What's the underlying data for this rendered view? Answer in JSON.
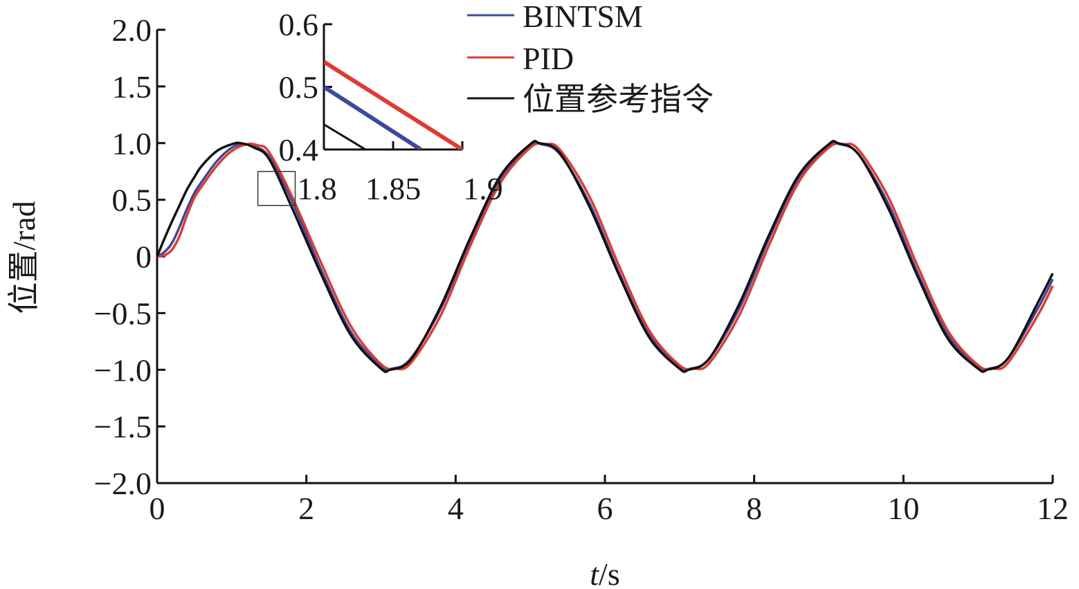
{
  "chart_data": {
    "type": "line",
    "xlabel_var": "t",
    "xlabel_unit": "/s",
    "ylabel": "位置/rad",
    "xlim": [
      0,
      12
    ],
    "ylim": [
      -2.0,
      2.0
    ],
    "xticks": [
      0,
      2,
      4,
      6,
      8,
      10,
      12
    ],
    "xtick_labels": [
      "0",
      "2",
      "4",
      "6",
      "8",
      "10",
      "12"
    ],
    "yticks": [
      2.0,
      1.5,
      1.0,
      0.5,
      0,
      -0.5,
      -1.0,
      -1.5,
      -2.0
    ],
    "ytick_labels": [
      "2.0",
      "1.5",
      "1.0",
      "0.5",
      "0",
      "−0.5",
      "−1.0",
      "−1.5",
      "−2.0"
    ],
    "grid": false,
    "legend_position": "top-center",
    "series": [
      {
        "name": "BINTSM",
        "color": "#3b4a9a",
        "x": [
          0,
          0.1,
          0.2,
          0.3,
          0.4,
          0.5,
          0.6,
          0.8,
          1.0,
          1.15,
          1.3,
          1.5,
          1.8,
          2.2,
          2.6,
          3.0,
          3.15,
          3.4,
          3.8,
          4.2,
          4.6,
          5.0,
          5.15,
          5.4,
          5.8,
          6.2,
          6.6,
          7.0,
          7.15,
          7.4,
          7.8,
          8.2,
          8.6,
          9.0,
          9.15,
          9.4,
          9.8,
          10.2,
          10.6,
          11.0,
          11.15,
          11.4,
          11.8,
          12.0
        ],
        "y": [
          0.0,
          0.04,
          0.12,
          0.26,
          0.42,
          0.56,
          0.66,
          0.84,
          0.96,
          0.99,
          0.97,
          0.88,
          0.5,
          -0.12,
          -0.67,
          -0.97,
          -0.99,
          -0.9,
          -0.46,
          0.15,
          0.69,
          0.97,
          0.99,
          0.9,
          0.46,
          -0.16,
          -0.7,
          -0.97,
          -0.99,
          -0.9,
          -0.46,
          0.16,
          0.7,
          0.97,
          0.99,
          0.9,
          0.46,
          -0.16,
          -0.7,
          -0.97,
          -0.99,
          -0.9,
          -0.46,
          -0.2
        ]
      },
      {
        "name": "PID",
        "color": "#e03a32",
        "x": [
          0,
          0.1,
          0.2,
          0.3,
          0.4,
          0.5,
          0.6,
          0.8,
          1.0,
          1.2,
          1.35,
          1.5,
          1.8,
          2.2,
          2.6,
          3.0,
          3.2,
          3.4,
          3.8,
          4.2,
          4.6,
          5.0,
          5.2,
          5.4,
          5.8,
          6.2,
          6.6,
          7.0,
          7.2,
          7.4,
          7.8,
          8.2,
          8.6,
          9.0,
          9.2,
          9.4,
          9.8,
          10.2,
          10.6,
          11.0,
          11.2,
          11.4,
          11.8,
          12.0
        ],
        "y": [
          0.0,
          0.01,
          0.06,
          0.18,
          0.36,
          0.52,
          0.62,
          0.8,
          0.93,
          0.99,
          0.98,
          0.92,
          0.54,
          -0.06,
          -0.62,
          -0.95,
          -0.99,
          -0.94,
          -0.52,
          0.1,
          0.65,
          0.96,
          0.99,
          0.94,
          0.52,
          -0.1,
          -0.66,
          -0.96,
          -0.99,
          -0.94,
          -0.52,
          0.1,
          0.66,
          0.96,
          0.99,
          0.94,
          0.52,
          -0.1,
          -0.66,
          -0.96,
          -0.99,
          -0.94,
          -0.52,
          -0.26
        ]
      },
      {
        "name": "位置参考指令",
        "color": "#111111",
        "x": [
          0,
          0.1,
          0.2,
          0.3,
          0.4,
          0.5,
          0.6,
          0.8,
          1.0,
          1.12,
          1.3,
          1.5,
          1.8,
          2.2,
          2.6,
          3.0,
          3.12,
          3.4,
          3.8,
          4.2,
          4.6,
          5.0,
          5.12,
          5.4,
          5.8,
          6.2,
          6.6,
          7.0,
          7.12,
          7.4,
          7.8,
          8.2,
          8.6,
          9.0,
          9.12,
          9.4,
          9.8,
          10.2,
          10.6,
          11.0,
          11.12,
          11.4,
          11.8,
          12.0
        ],
        "y": [
          0.0,
          0.16,
          0.31,
          0.45,
          0.59,
          0.7,
          0.8,
          0.93,
          0.99,
          1.0,
          0.96,
          0.86,
          0.44,
          -0.16,
          -0.7,
          -0.99,
          -1.0,
          -0.91,
          -0.44,
          0.17,
          0.71,
          0.99,
          1.0,
          0.91,
          0.43,
          -0.18,
          -0.72,
          -0.99,
          -1.0,
          -0.9,
          -0.42,
          0.19,
          0.72,
          0.99,
          1.0,
          0.9,
          0.42,
          -0.19,
          -0.73,
          -0.99,
          -1.0,
          -0.9,
          -0.41,
          -0.15
        ]
      }
    ],
    "inset": {
      "xlim": [
        1.8,
        1.9
      ],
      "ylim": [
        0.4,
        0.6
      ],
      "xticks": [
        1.8,
        1.85,
        1.9
      ],
      "xtick_labels": [
        "1.8",
        "1.85",
        "1.9"
      ],
      "yticks": [
        0.6,
        0.5,
        0.4
      ],
      "ytick_labels": [
        "0.6",
        "0.5",
        "0.4"
      ],
      "zoom_box_x": [
        1.35,
        1.85
      ],
      "zoom_box_y": [
        0.45,
        0.75
      ],
      "series": [
        {
          "name": "BINTSM",
          "color": "#3b4a9a",
          "x": [
            1.8,
            1.87
          ],
          "y": [
            0.5,
            0.4
          ]
        },
        {
          "name": "PID",
          "color": "#e03a32",
          "x": [
            1.8,
            1.9
          ],
          "y": [
            0.54,
            0.4
          ]
        },
        {
          "name": "位置参考指令",
          "color": "#111111",
          "x": [
            1.8,
            1.83
          ],
          "y": [
            0.44,
            0.4
          ]
        }
      ]
    }
  }
}
